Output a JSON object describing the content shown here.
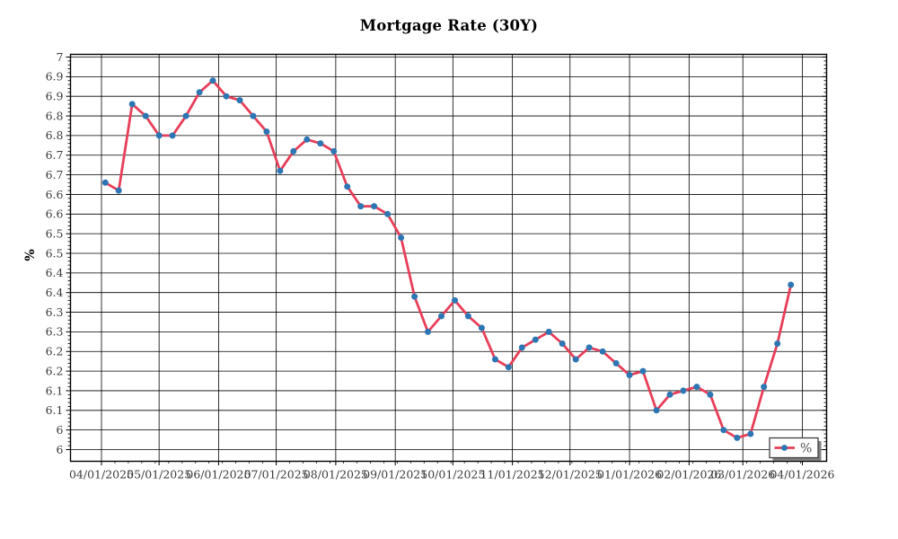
{
  "title": "Mortgage Rate (30Y)",
  "y_axis": {
    "label": "%",
    "tick_labels": [
      "7",
      "6.9",
      "6.9",
      "6.8",
      "6.8",
      "6.7",
      "6.7",
      "6.6",
      "6.6",
      "6.5",
      "6.5",
      "6.4",
      "6.4",
      "6.3",
      "6.3",
      "6.2",
      "6.2",
      "6.1",
      "6.1",
      "6",
      "6"
    ]
  },
  "x_axis": {
    "tick_labels": [
      "04/01/2025",
      "05/01/2025",
      "06/01/2025",
      "07/01/2025",
      "08/01/2025",
      "09/01/2025",
      "10/01/2025",
      "11/01/2025",
      "12/01/2025",
      "01/01/2026",
      "02/01/2026",
      "03/01/2026",
      "04/01/2026"
    ]
  },
  "legend": {
    "label": "%"
  },
  "colors": {
    "line": "#e73e59",
    "marker": "#2d76b4",
    "grid": "#000000",
    "frame": "#000000",
    "tick_text": "#3c3c3c",
    "title_text": "#000000",
    "legend_text": "#4f4f4f",
    "legend_border": "#3f3f3f",
    "legend_shadow": "#7f7f7f",
    "background": "#ffffff"
  },
  "chart_data": {
    "type": "line",
    "title": "Mortgage Rate (30Y)",
    "xlabel": "",
    "ylabel": "%",
    "grid": true,
    "legend_position": "lower right",
    "ylim": [
      5.97,
      7.0
    ],
    "y_tick_step": 0.05,
    "y_tick_max": 7.0,
    "y_tick_min": 6.0,
    "xlim": [
      "04/01/2025",
      "04/01/2026"
    ],
    "x_tick_labels": [
      "04/01/2025",
      "05/01/2025",
      "06/01/2025",
      "07/01/2025",
      "08/01/2025",
      "09/01/2025",
      "10/01/2025",
      "11/01/2025",
      "12/01/2025",
      "01/01/2026",
      "02/01/2026",
      "03/01/2026",
      "04/01/2026"
    ],
    "y_tick_labels": [
      "7",
      "6.9",
      "6.9",
      "6.8",
      "6.8",
      "6.7",
      "6.7",
      "6.6",
      "6.6",
      "6.5",
      "6.5",
      "6.4",
      "6.4",
      "6.3",
      "6.3",
      "6.2",
      "6.2",
      "6.1",
      "6.1",
      "6",
      "6"
    ],
    "series": [
      {
        "name": "%",
        "x": [
          "04/03/2025",
          "04/10/2025",
          "04/17/2025",
          "04/24/2025",
          "05/01/2025",
          "05/08/2025",
          "05/15/2025",
          "05/22/2025",
          "05/29/2025",
          "06/05/2025",
          "06/12/2025",
          "06/19/2025",
          "06/26/2025",
          "07/03/2025",
          "07/10/2025",
          "07/17/2025",
          "07/24/2025",
          "07/31/2025",
          "08/07/2025",
          "08/14/2025",
          "08/21/2025",
          "08/28/2025",
          "09/04/2025",
          "09/11/2025",
          "09/18/2025",
          "09/25/2025",
          "10/02/2025",
          "10/09/2025",
          "10/16/2025",
          "10/23/2025",
          "10/30/2025",
          "11/06/2025",
          "11/13/2025",
          "11/20/2025",
          "11/27/2025",
          "12/04/2025",
          "12/11/2025",
          "12/18/2025",
          "12/25/2025",
          "01/01/2026",
          "01/08/2026",
          "01/15/2026",
          "01/22/2026",
          "01/29/2026",
          "02/05/2026",
          "02/12/2026",
          "02/19/2026",
          "02/26/2026",
          "03/05/2026",
          "03/12/2026",
          "03/19/2026",
          "03/26/2026"
        ],
        "values": [
          6.68,
          6.66,
          6.88,
          6.85,
          6.8,
          6.8,
          6.85,
          6.91,
          6.94,
          6.9,
          6.89,
          6.85,
          6.81,
          6.71,
          6.76,
          6.79,
          6.78,
          6.76,
          6.67,
          6.62,
          6.62,
          6.6,
          6.54,
          6.39,
          6.3,
          6.34,
          6.38,
          6.34,
          6.31,
          6.23,
          6.21,
          6.26,
          6.28,
          6.3,
          6.27,
          6.23,
          6.26,
          6.25,
          6.22,
          6.19,
          6.2,
          6.1,
          6.14,
          6.15,
          6.16,
          6.14,
          6.05,
          6.03,
          6.04,
          6.16,
          6.27,
          6.42
        ]
      }
    ]
  }
}
